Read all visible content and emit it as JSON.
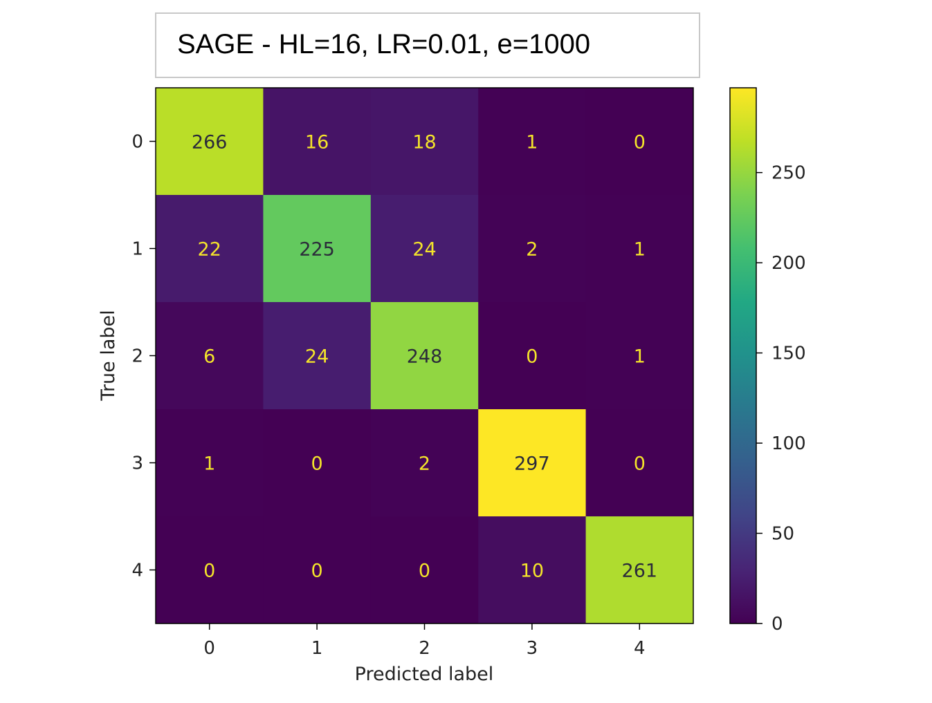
{
  "title": "SAGE - HL=16, LR=0.01, e=1000",
  "chart_data": {
    "type": "heatmap",
    "title": "SAGE - HL=16, LR=0.01, e=1000",
    "xlabel": "Predicted label",
    "ylabel": "True label",
    "x_categories": [
      "0",
      "1",
      "2",
      "3",
      "4"
    ],
    "y_categories": [
      "0",
      "1",
      "2",
      "3",
      "4"
    ],
    "values": [
      [
        266,
        16,
        18,
        1,
        0
      ],
      [
        22,
        225,
        24,
        2,
        1
      ],
      [
        6,
        24,
        248,
        0,
        1
      ],
      [
        1,
        0,
        2,
        297,
        0
      ],
      [
        0,
        0,
        0,
        10,
        261
      ]
    ],
    "colormap": "viridis",
    "colorbar": {
      "range": [
        0,
        297
      ],
      "ticks": [
        0,
        50,
        100,
        150,
        200,
        250
      ]
    },
    "colors": {
      "text_on_dark": "#f5e52a",
      "text_on_light": "#2b2b3a"
    }
  }
}
